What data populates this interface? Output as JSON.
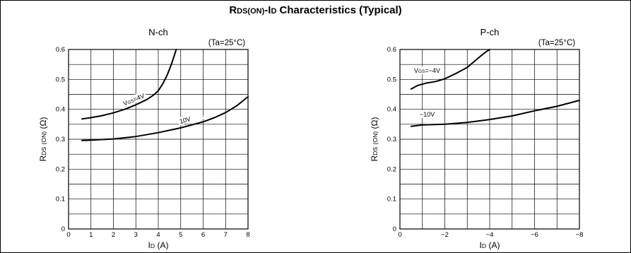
{
  "title": "RDS(ON)-ID Characteristics (Typical)",
  "chart_data": [
    {
      "type": "line",
      "title": "N-ch",
      "condition": "(Ta=25°C)",
      "xlabel": "ID (A)",
      "ylabel": "RDS (ON) (Ω)",
      "xlim": [
        0,
        8
      ],
      "ylim": [
        0,
        0.6
      ],
      "x_ticks": [
        "0",
        "1",
        "2",
        "3",
        "4",
        "5",
        "6",
        "7",
        "8"
      ],
      "y_ticks": [
        "0",
        "0.1",
        "0.2",
        "0.3",
        "0.4",
        "0.5",
        "0.6"
      ],
      "series": [
        {
          "name": "VGS=4V",
          "x": [
            0.6,
            1.0,
            1.5,
            2.0,
            2.5,
            3.0,
            3.5,
            3.8,
            4.0,
            4.2,
            4.4,
            4.6,
            4.8
          ],
          "y": [
            0.368,
            0.372,
            0.379,
            0.388,
            0.4,
            0.415,
            0.433,
            0.448,
            0.462,
            0.485,
            0.515,
            0.553,
            0.6
          ]
        },
        {
          "name": "10V",
          "x": [
            0.6,
            1.0,
            2.0,
            3.0,
            4.0,
            5.0,
            6.0,
            6.5,
            7.0,
            7.5,
            8.0
          ],
          "y": [
            0.296,
            0.297,
            0.301,
            0.309,
            0.322,
            0.338,
            0.358,
            0.372,
            0.389,
            0.412,
            0.442
          ]
        }
      ]
    },
    {
      "type": "line",
      "title": "P-ch",
      "condition": "(Ta=25°C)",
      "xlabel": "ID (A)",
      "ylabel": "RDS (ON) (Ω)",
      "xlim": [
        0,
        -8
      ],
      "ylim": [
        0,
        0.6
      ],
      "x_ticks": [
        "0",
        "−2",
        "−4",
        "−6",
        "−8"
      ],
      "y_ticks": [
        "0",
        "0.1",
        "0.2",
        "0.3",
        "0.4",
        "0.5",
        "0.6"
      ],
      "series": [
        {
          "name": "VGS=−4V",
          "x": [
            -0.5,
            -0.8,
            -1.2,
            -1.6,
            -2.0,
            -2.5,
            -3.0,
            -3.5,
            -3.8,
            -4.0
          ],
          "y": [
            0.468,
            0.48,
            0.488,
            0.493,
            0.502,
            0.52,
            0.54,
            0.572,
            0.59,
            0.6
          ]
        },
        {
          "name": "−10V",
          "x": [
            -0.5,
            -1.0,
            -2.0,
            -3.0,
            -4.0,
            -5.0,
            -6.0,
            -7.0,
            -8.0
          ],
          "y": [
            0.343,
            0.348,
            0.35,
            0.356,
            0.366,
            0.378,
            0.395,
            0.41,
            0.43
          ]
        }
      ]
    }
  ]
}
